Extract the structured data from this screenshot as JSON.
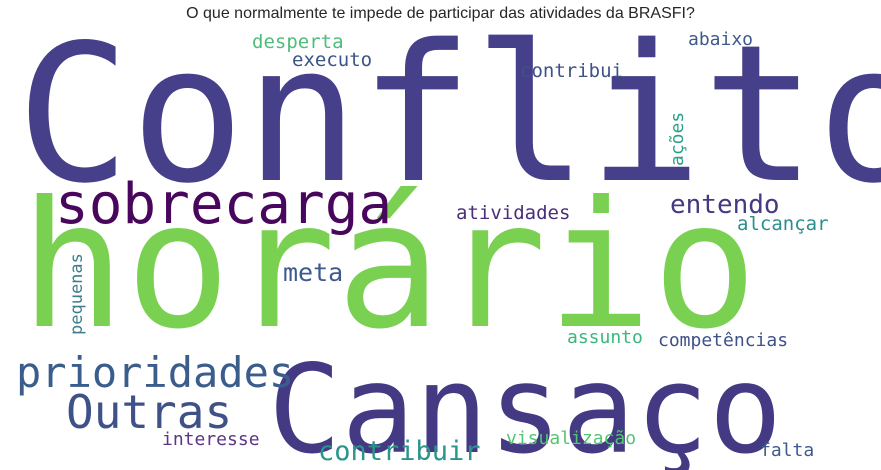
{
  "chart_data": {
    "type": "wordcloud",
    "title": "O que normalmente te impede de participar das atividades da BRASFI?",
    "words": [
      {
        "text": "Conflito",
        "color": "#46408a"
      },
      {
        "text": "horário",
        "color": "#7ad151"
      },
      {
        "text": "Cansaço",
        "color": "#443983"
      },
      {
        "text": "sobrecarga",
        "color": "#48065c"
      },
      {
        "text": "prioridades",
        "color": "#3b5d8c"
      },
      {
        "text": "Outras",
        "color": "#3f5288"
      },
      {
        "text": "contribuir",
        "color": "#2a958a"
      },
      {
        "text": "meta",
        "color": "#3d5a8c"
      },
      {
        "text": "entendo",
        "color": "#443a83"
      },
      {
        "text": "atividades",
        "color": "#4a2e7a"
      },
      {
        "text": "alcançar",
        "color": "#2a8f8c"
      },
      {
        "text": "desperta",
        "color": "#4fbc7c"
      },
      {
        "text": "executo",
        "color": "#3b5488"
      },
      {
        "text": "contribui",
        "color": "#3f5288"
      },
      {
        "text": "abaixo",
        "color": "#3e5a8c"
      },
      {
        "text": "ações",
        "color": "#2aa287"
      },
      {
        "text": "pequenas",
        "color": "#3b7d8f"
      },
      {
        "text": "assunto",
        "color": "#3ab87c"
      },
      {
        "text": "competências",
        "color": "#3e5288"
      },
      {
        "text": "interesse",
        "color": "#5b3587"
      },
      {
        "text": "visualização",
        "color": "#55c472"
      },
      {
        "text": "falta",
        "color": "#3f5a8c"
      }
    ]
  }
}
